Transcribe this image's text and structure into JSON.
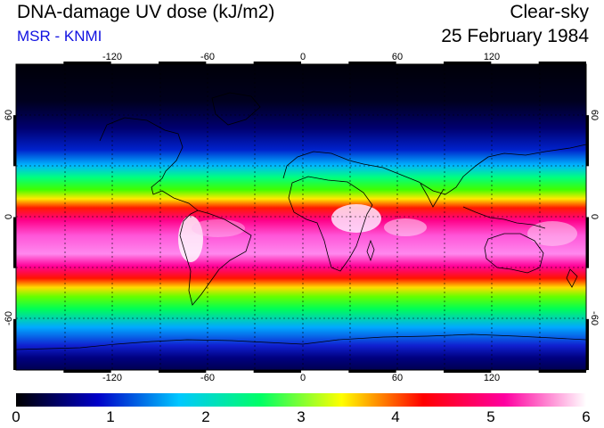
{
  "header": {
    "title": "DNA-damage UV dose (kJ/m2)",
    "source": "MSR - KNMI",
    "condition": "Clear-sky",
    "date": "25 February 1984"
  },
  "map": {
    "lon_ticks_top": [
      "-120",
      "-60",
      "0",
      "60",
      "120"
    ],
    "lon_ticks_bottom": [
      "-120",
      "-60",
      "0",
      "60",
      "120"
    ],
    "lat_ticks_left": [
      "60",
      "0",
      "-60"
    ],
    "lat_ticks_right": [
      "60",
      "0",
      "-60"
    ]
  },
  "colorbar": {
    "labels": [
      "0",
      "1",
      "2",
      "3",
      "4",
      "5",
      "6"
    ],
    "colors": [
      "#000000",
      "#0000c8",
      "#00c8ff",
      "#00ff66",
      "#ffff00",
      "#ff0000",
      "#ff00a0",
      "#ffffff"
    ]
  }
}
